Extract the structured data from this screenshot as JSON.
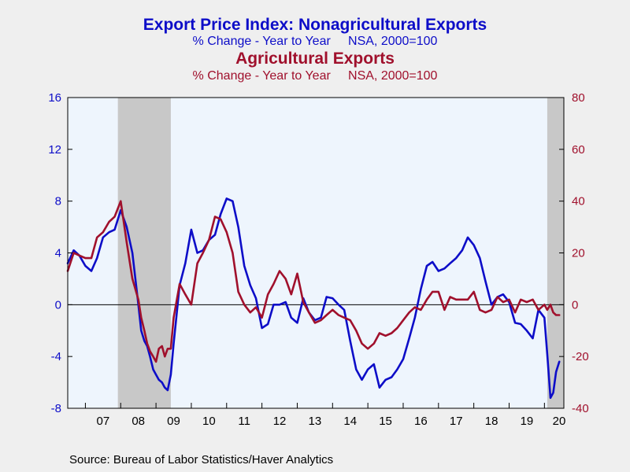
{
  "titles": {
    "line1": "Export Price Index: Nonagricultural Exports",
    "line2": "% Change - Year to Year     NSA, 2000=100",
    "line3": "Agricultural Exports",
    "line4": "% Change - Year to Year     NSA, 2000=100"
  },
  "source": "Source:  Bureau of Labor Statistics/Haver Analytics",
  "colors": {
    "nonag": "#0d0dc8",
    "ag": "#a0102c",
    "recession": "#c8c8c8",
    "plot_bg": "#eef5fd",
    "page_bg": "#efefef"
  },
  "chart_data": {
    "type": "line",
    "x_unit": "year",
    "xlim": [
      2006.5,
      2020.55
    ],
    "x_tick_labels": [
      "07",
      "08",
      "09",
      "10",
      "11",
      "12",
      "13",
      "14",
      "15",
      "16",
      "17",
      "18",
      "19",
      "20"
    ],
    "y_left": {
      "ylim": [
        -8,
        16
      ],
      "ticks": [
        -8,
        -4,
        0,
        4,
        8,
        12,
        16
      ],
      "color": "#0d0dc8"
    },
    "y_right": {
      "ylim": [
        -40,
        80
      ],
      "ticks": [
        -40,
        -20,
        0,
        20,
        40,
        60,
        80
      ],
      "color": "#a0102c"
    },
    "recessions": [
      [
        2007.92,
        2009.42
      ],
      [
        2020.08,
        2020.55
      ]
    ],
    "zero_line": true,
    "series": [
      {
        "key": "nonag",
        "axis": "left",
        "x": [
          2006.5,
          2006.67,
          2006.83,
          2007.0,
          2007.17,
          2007.33,
          2007.5,
          2007.67,
          2007.83,
          2008.0,
          2008.17,
          2008.33,
          2008.5,
          2008.58,
          2008.67,
          2008.75,
          2008.83,
          2008.92,
          2009.0,
          2009.08,
          2009.17,
          2009.25,
          2009.33,
          2009.42,
          2009.5,
          2009.67,
          2009.83,
          2010.0,
          2010.17,
          2010.33,
          2010.5,
          2010.67,
          2010.83,
          2011.0,
          2011.17,
          2011.33,
          2011.5,
          2011.67,
          2011.83,
          2012.0,
          2012.17,
          2012.33,
          2012.5,
          2012.67,
          2012.83,
          2013.0,
          2013.17,
          2013.33,
          2013.5,
          2013.67,
          2013.83,
          2014.0,
          2014.17,
          2014.33,
          2014.5,
          2014.67,
          2014.83,
          2015.0,
          2015.17,
          2015.33,
          2015.5,
          2015.67,
          2015.83,
          2016.0,
          2016.17,
          2016.33,
          2016.5,
          2016.67,
          2016.83,
          2017.0,
          2017.17,
          2017.33,
          2017.5,
          2017.67,
          2017.83,
          2018.0,
          2018.17,
          2018.33,
          2018.5,
          2018.67,
          2018.83,
          2019.0,
          2019.17,
          2019.33,
          2019.5,
          2019.67,
          2019.83,
          2020.0,
          2020.08,
          2020.17,
          2020.25,
          2020.33,
          2020.42
        ],
        "y": [
          3.2,
          4.2,
          3.8,
          3.0,
          2.6,
          3.6,
          5.2,
          5.6,
          5.8,
          7.3,
          6.0,
          4.0,
          0.0,
          -2.0,
          -2.8,
          -3.2,
          -4.0,
          -5.0,
          -5.4,
          -5.8,
          -6.0,
          -6.4,
          -6.6,
          -5.4,
          -3.0,
          1.5,
          3.2,
          5.8,
          4.0,
          4.2,
          5.0,
          5.4,
          7.0,
          8.2,
          8.0,
          6.0,
          3.0,
          1.5,
          0.5,
          -1.8,
          -1.5,
          0.0,
          0.0,
          0.2,
          -1.0,
          -1.4,
          0.5,
          -0.6,
          -1.2,
          -1.0,
          0.6,
          0.5,
          0.0,
          -0.4,
          -2.8,
          -5.0,
          -5.8,
          -5.0,
          -4.6,
          -6.4,
          -5.8,
          -5.6,
          -5.0,
          -4.2,
          -2.6,
          -1.0,
          1.2,
          3.0,
          3.3,
          2.6,
          2.8,
          3.2,
          3.6,
          4.2,
          5.2,
          4.6,
          3.6,
          1.8,
          0.0,
          0.6,
          0.8,
          0.2,
          -1.4,
          -1.5,
          -2.0,
          -2.6,
          -0.4,
          -1.0,
          -3.8,
          -7.2,
          -6.8,
          -5.2,
          -4.4
        ]
      },
      {
        "key": "ag",
        "axis": "right",
        "x": [
          2006.5,
          2006.67,
          2006.83,
          2007.0,
          2007.17,
          2007.33,
          2007.5,
          2007.67,
          2007.83,
          2008.0,
          2008.17,
          2008.33,
          2008.5,
          2008.58,
          2008.67,
          2008.75,
          2008.83,
          2008.92,
          2009.0,
          2009.08,
          2009.17,
          2009.25,
          2009.33,
          2009.42,
          2009.5,
          2009.67,
          2009.83,
          2010.0,
          2010.17,
          2010.33,
          2010.5,
          2010.67,
          2010.83,
          2011.0,
          2011.17,
          2011.33,
          2011.5,
          2011.67,
          2011.83,
          2012.0,
          2012.17,
          2012.33,
          2012.5,
          2012.67,
          2012.83,
          2013.0,
          2013.17,
          2013.33,
          2013.5,
          2013.67,
          2013.83,
          2014.0,
          2014.17,
          2014.33,
          2014.5,
          2014.67,
          2014.83,
          2015.0,
          2015.17,
          2015.33,
          2015.5,
          2015.67,
          2015.83,
          2016.0,
          2016.17,
          2016.33,
          2016.5,
          2016.67,
          2016.83,
          2017.0,
          2017.17,
          2017.33,
          2017.5,
          2017.67,
          2017.83,
          2018.0,
          2018.17,
          2018.33,
          2018.5,
          2018.67,
          2018.83,
          2019.0,
          2019.17,
          2019.33,
          2019.5,
          2019.67,
          2019.83,
          2020.0,
          2020.08,
          2020.17,
          2020.25,
          2020.33,
          2020.42
        ],
        "y": [
          13,
          20,
          19,
          18,
          18,
          26,
          28,
          32,
          34,
          40,
          24,
          10,
          2,
          -5,
          -10,
          -15,
          -18,
          -20,
          -22,
          -17,
          -16,
          -20,
          -17,
          -17,
          -5,
          8,
          4,
          0,
          16,
          20,
          25,
          34,
          33,
          28,
          20,
          5,
          0,
          -3,
          -1,
          -5,
          4,
          8,
          13,
          10,
          4,
          12,
          1,
          -3,
          -7,
          -6,
          -4,
          -2,
          -4,
          -5,
          -6,
          -10,
          -15,
          -17,
          -15,
          -11,
          -12,
          -11,
          -9,
          -6,
          -3,
          -1,
          -2,
          2,
          5,
          5,
          -2,
          3,
          2,
          2,
          2,
          5,
          -2,
          -3,
          -2,
          3,
          1,
          2,
          -3,
          2,
          1,
          2,
          -2,
          0,
          -2,
          0,
          -3,
          -4,
          -4
        ]
      }
    ]
  }
}
